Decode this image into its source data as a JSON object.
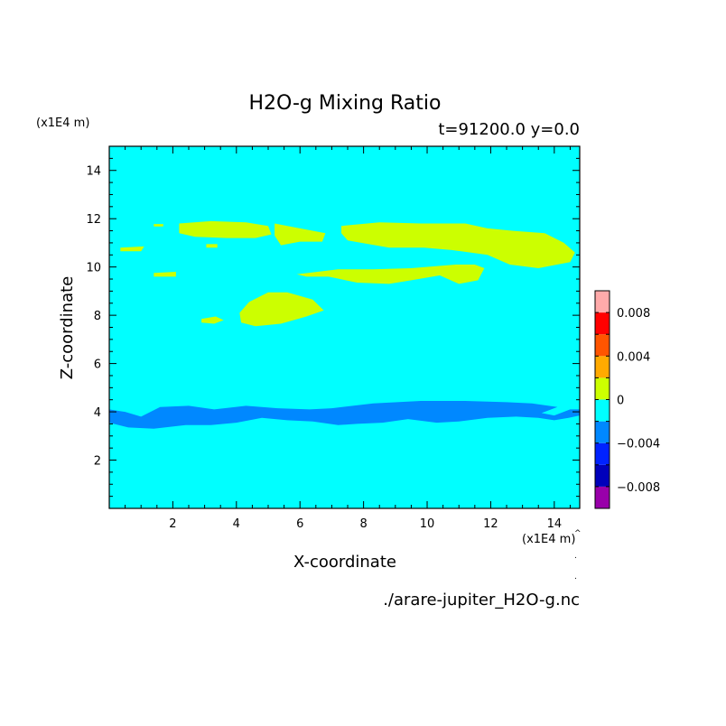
{
  "chart_data": {
    "type": "heatmap",
    "title": "H2O-g Mixing Ratio",
    "subtitle": "t=91200.0 y=0.0",
    "xlabel": "X-coordinate",
    "ylabel": "Z-coordinate",
    "x_unit": "(x1E4 m)",
    "y_unit": "(x1E4 m)",
    "filename": "./arare-jupiter_H2O-g.nc",
    "xlim": [
      0,
      14.8
    ],
    "ylim": [
      0,
      15
    ],
    "xticks": [
      2,
      4,
      6,
      8,
      10,
      12,
      14
    ],
    "yticks": [
      2,
      4,
      6,
      8,
      10,
      12,
      14
    ],
    "background_color": "#00ffff",
    "colorbar": {
      "levels": [
        -0.01,
        -0.008,
        -0.006,
        -0.004,
        -0.002,
        0,
        0.002,
        0.004,
        0.006,
        0.008,
        0.01
      ],
      "colors": [
        "#9900aa",
        "#0000bb",
        "#0022ff",
        "#0088ff",
        "#00ffff",
        "#ccff00",
        "#ffaa00",
        "#ff5500",
        "#ff0000",
        "#ffaaaa"
      ],
      "tick_values": [
        -0.008,
        -0.004,
        0,
        0.004,
        0.008
      ],
      "tick_labels": [
        "−0.008",
        "−0.004",
        "0",
        "0.004",
        "0.008"
      ]
    },
    "regions": [
      {
        "level": "positive",
        "color": "#ccff00",
        "points": [
          [
            2.2,
            11.8
          ],
          [
            3.2,
            11.9
          ],
          [
            4.3,
            11.85
          ],
          [
            5.0,
            11.7
          ],
          [
            5.1,
            11.35
          ],
          [
            4.6,
            11.2
          ],
          [
            3.7,
            11.2
          ],
          [
            2.7,
            11.25
          ],
          [
            2.2,
            11.4
          ]
        ]
      },
      {
        "level": "positive",
        "color": "#ccff00",
        "points": [
          [
            5.2,
            11.8
          ],
          [
            6.0,
            11.6
          ],
          [
            6.8,
            11.4
          ],
          [
            6.7,
            11.05
          ],
          [
            6.0,
            11.05
          ],
          [
            5.4,
            10.9
          ],
          [
            5.2,
            11.3
          ]
        ]
      },
      {
        "level": "positive",
        "color": "#ccff00",
        "points": [
          [
            7.3,
            11.7
          ],
          [
            8.5,
            11.85
          ],
          [
            9.8,
            11.8
          ],
          [
            11.2,
            11.8
          ],
          [
            11.9,
            11.6
          ],
          [
            12.7,
            11.5
          ],
          [
            13.7,
            11.4
          ],
          [
            14.3,
            11.0
          ],
          [
            14.65,
            10.6
          ],
          [
            14.5,
            10.2
          ],
          [
            13.5,
            9.95
          ],
          [
            12.6,
            10.1
          ],
          [
            11.9,
            10.5
          ],
          [
            10.8,
            10.7
          ],
          [
            9.9,
            10.8
          ],
          [
            8.8,
            10.8
          ],
          [
            7.5,
            11.1
          ],
          [
            7.3,
            11.4
          ]
        ]
      },
      {
        "level": "positive",
        "color": "#ccff00",
        "points": [
          [
            5.9,
            9.7
          ],
          [
            7.2,
            9.9
          ],
          [
            8.3,
            9.9
          ],
          [
            9.5,
            9.95
          ],
          [
            10.9,
            10.1
          ],
          [
            11.5,
            10.1
          ],
          [
            11.8,
            9.95
          ],
          [
            11.6,
            9.45
          ],
          [
            11.0,
            9.3
          ],
          [
            10.4,
            9.65
          ],
          [
            9.5,
            9.45
          ],
          [
            8.8,
            9.3
          ],
          [
            7.8,
            9.35
          ],
          [
            6.9,
            9.6
          ],
          [
            6.2,
            9.6
          ]
        ]
      },
      {
        "level": "positive",
        "color": "#ccff00",
        "points": [
          [
            4.4,
            8.55
          ],
          [
            5.0,
            8.95
          ],
          [
            5.6,
            8.95
          ],
          [
            6.4,
            8.65
          ],
          [
            6.75,
            8.2
          ],
          [
            6.2,
            7.95
          ],
          [
            5.4,
            7.65
          ],
          [
            4.6,
            7.55
          ],
          [
            4.15,
            7.7
          ],
          [
            4.1,
            8.1
          ]
        ]
      },
      {
        "level": "positive",
        "color": "#ccff00",
        "points": [
          [
            2.9,
            7.85
          ],
          [
            3.35,
            7.95
          ],
          [
            3.6,
            7.8
          ],
          [
            3.3,
            7.65
          ],
          [
            2.9,
            7.7
          ]
        ]
      },
      {
        "level": "positive",
        "color": "#ccff00",
        "points": [
          [
            1.4,
            9.75
          ],
          [
            2.1,
            9.8
          ],
          [
            2.1,
            9.6
          ],
          [
            1.4,
            9.6
          ]
        ]
      },
      {
        "level": "positive",
        "color": "#ccff00",
        "points": [
          [
            0.35,
            10.8
          ],
          [
            1.1,
            10.85
          ],
          [
            1.0,
            10.65
          ],
          [
            0.35,
            10.65
          ]
        ]
      },
      {
        "level": "positive",
        "color": "#ccff00",
        "points": [
          [
            3.05,
            10.95
          ],
          [
            3.4,
            10.95
          ],
          [
            3.4,
            10.8
          ],
          [
            3.05,
            10.8
          ]
        ]
      },
      {
        "level": "positive",
        "color": "#ccff00",
        "points": [
          [
            1.4,
            11.78
          ],
          [
            1.7,
            11.78
          ],
          [
            1.7,
            11.68
          ],
          [
            1.4,
            11.68
          ]
        ]
      },
      {
        "level": "negative",
        "color": "#0088ff",
        "points": [
          [
            0,
            4.1
          ],
          [
            0.5,
            4.0
          ],
          [
            1.0,
            3.8
          ],
          [
            1.6,
            4.2
          ],
          [
            2.5,
            4.25
          ],
          [
            3.3,
            4.1
          ],
          [
            4.3,
            4.25
          ],
          [
            5.3,
            4.15
          ],
          [
            6.3,
            4.1
          ],
          [
            7.0,
            4.15
          ],
          [
            8.3,
            4.35
          ],
          [
            9.8,
            4.45
          ],
          [
            11.2,
            4.45
          ],
          [
            12.5,
            4.4
          ],
          [
            13.3,
            4.35
          ],
          [
            14.1,
            4.2
          ],
          [
            13.6,
            3.95
          ],
          [
            14.0,
            3.85
          ],
          [
            14.5,
            4.1
          ],
          [
            14.8,
            4.1
          ],
          [
            14.8,
            3.85
          ],
          [
            14.45,
            3.75
          ],
          [
            14.0,
            3.65
          ],
          [
            13.5,
            3.75
          ],
          [
            12.8,
            3.8
          ],
          [
            11.9,
            3.75
          ],
          [
            11.0,
            3.6
          ],
          [
            10.3,
            3.55
          ],
          [
            9.4,
            3.7
          ],
          [
            8.6,
            3.55
          ],
          [
            7.8,
            3.5
          ],
          [
            7.2,
            3.45
          ],
          [
            6.4,
            3.6
          ],
          [
            5.6,
            3.65
          ],
          [
            4.8,
            3.75
          ],
          [
            4.0,
            3.55
          ],
          [
            3.2,
            3.45
          ],
          [
            2.4,
            3.45
          ],
          [
            1.4,
            3.3
          ],
          [
            0.6,
            3.35
          ],
          [
            0,
            3.55
          ]
        ]
      }
    ]
  }
}
